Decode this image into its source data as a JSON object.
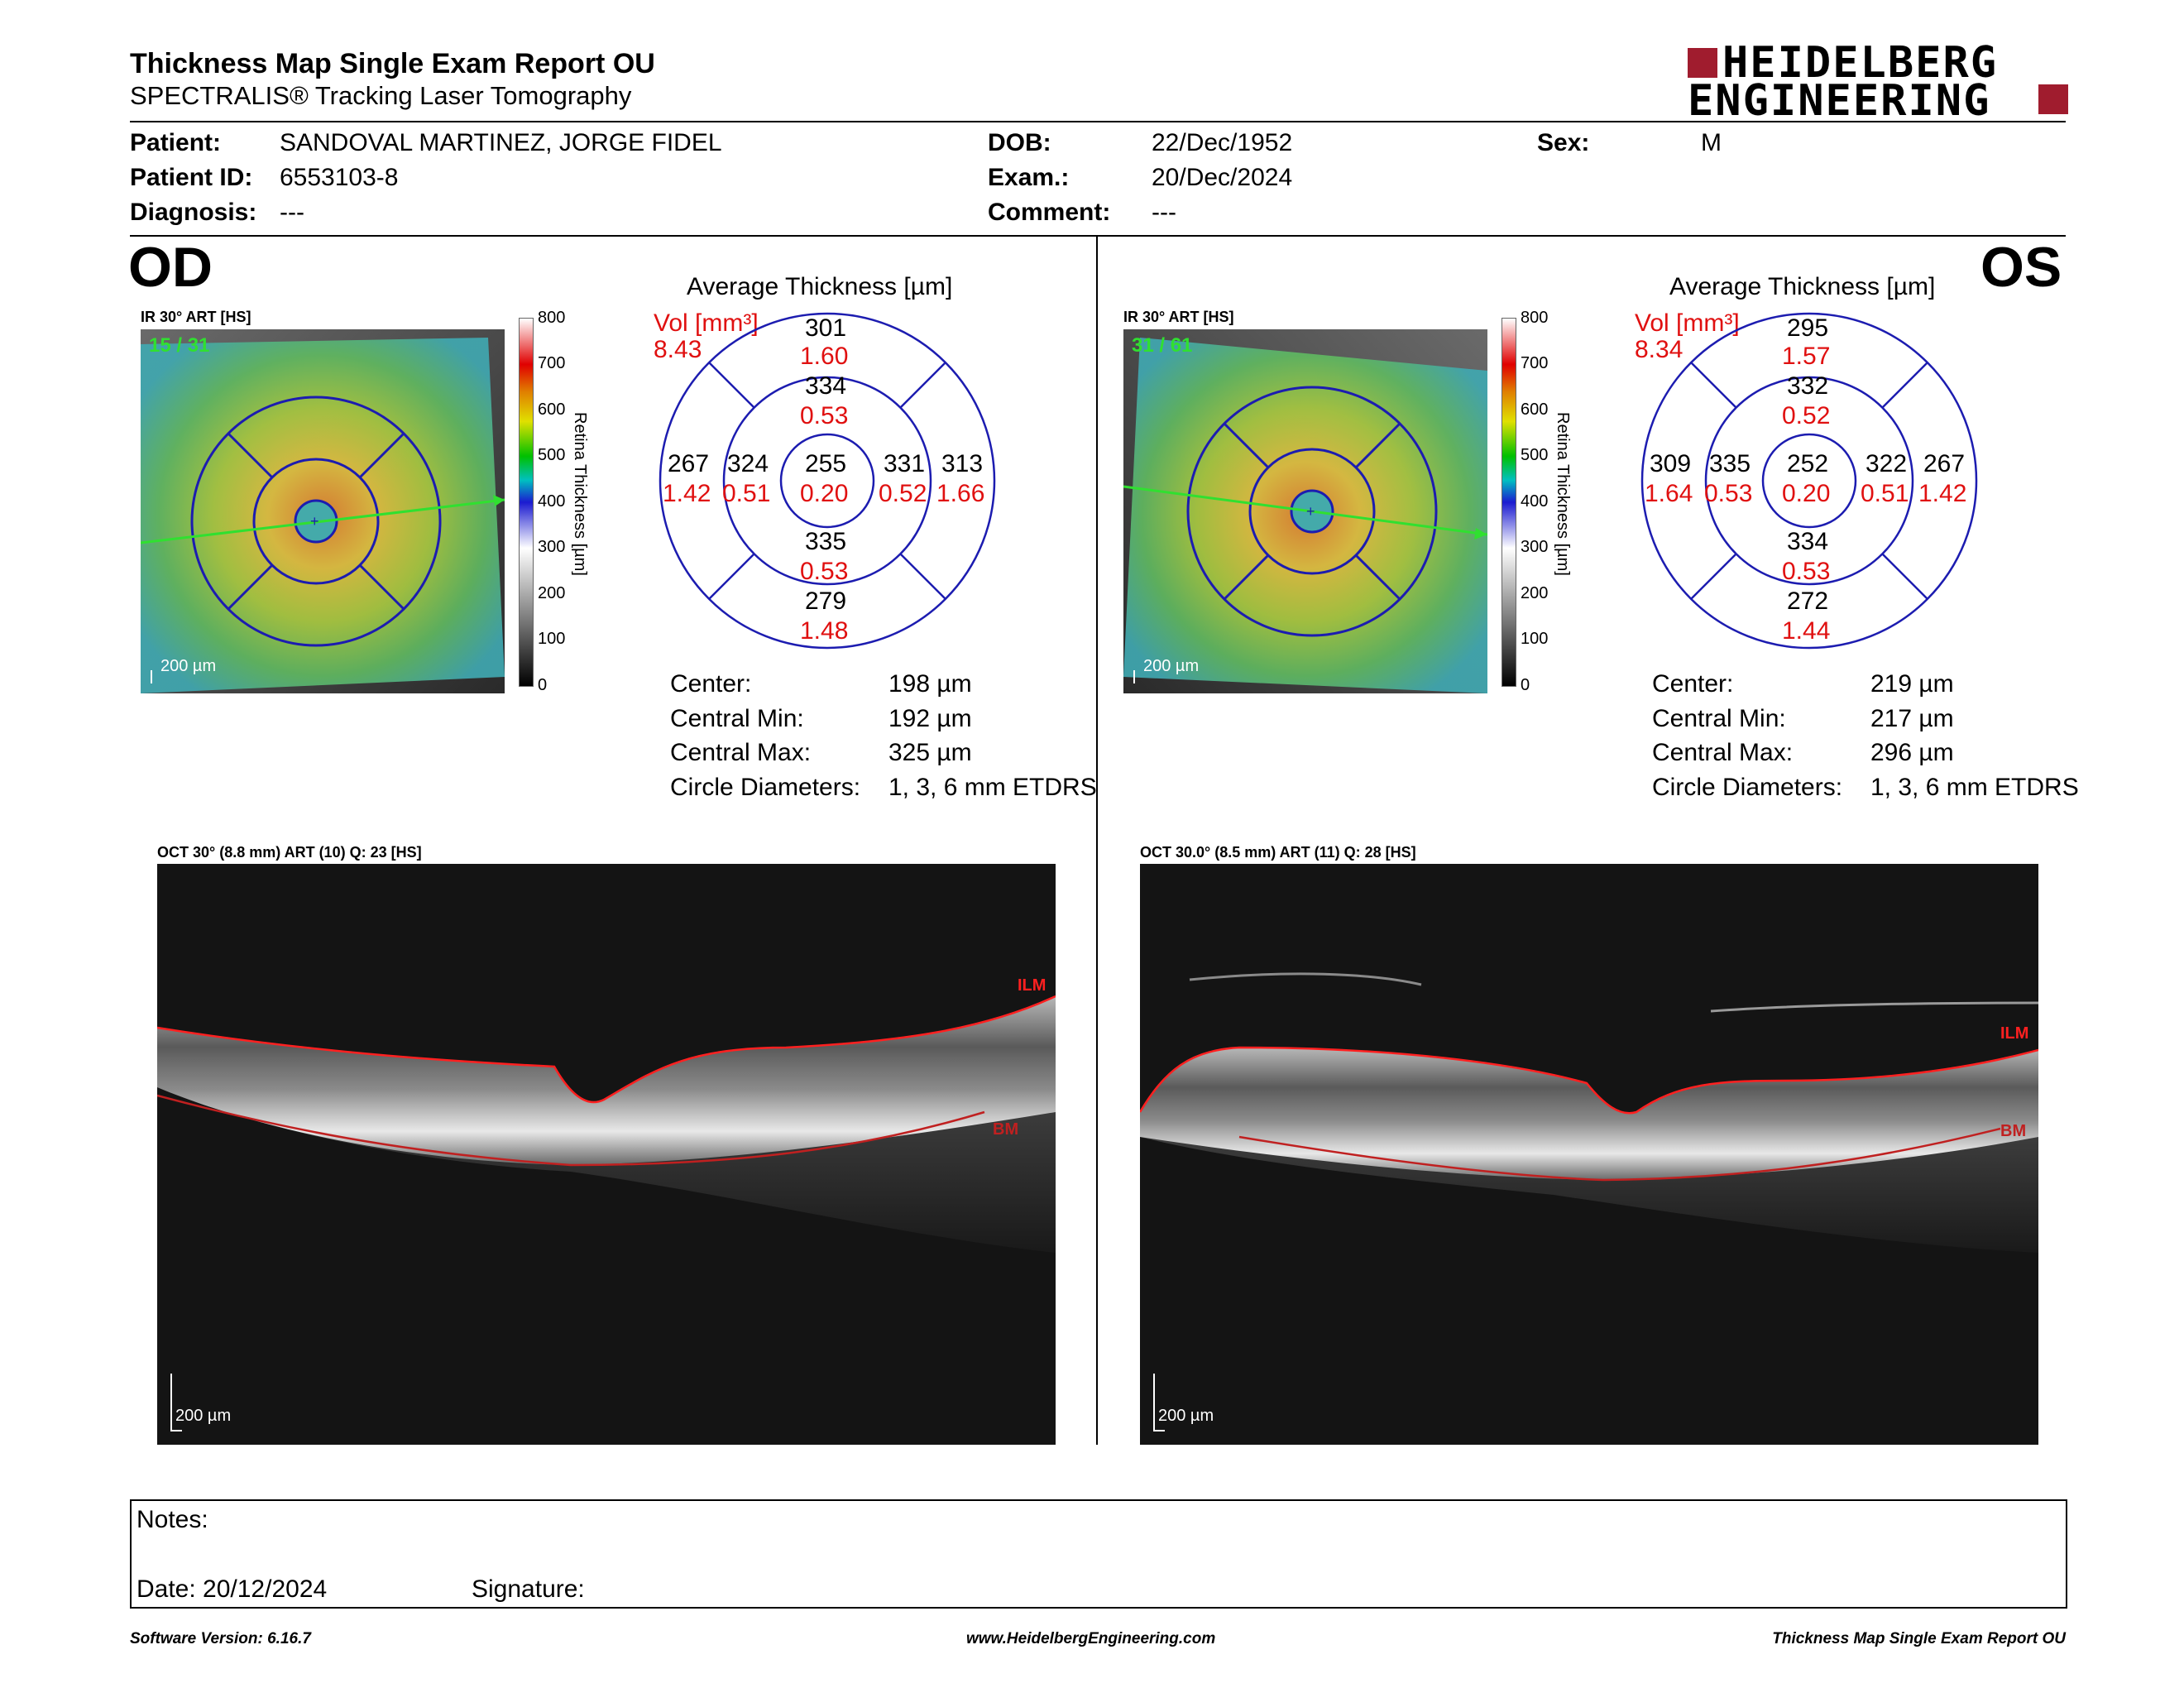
{
  "header": {
    "title": "Thickness Map Single Exam Report OU",
    "subtitle": "SPECTRALIS® Tracking Laser Tomography",
    "logo_line1": "HEIDELBERG",
    "logo_line2": "ENGINEERING"
  },
  "patient": {
    "patient_label": "Patient:",
    "patient_value": "SANDOVAL MARTINEZ, JORGE FIDEL",
    "id_label": "Patient ID:",
    "id_value": "6553103-8",
    "diagnosis_label": "Diagnosis:",
    "diagnosis_value": "---",
    "dob_label": "DOB:",
    "dob_value": "22/Dec/1952",
    "exam_label": "Exam.:",
    "exam_value": "20/Dec/2024",
    "comment_label": "Comment:",
    "comment_value": "---",
    "sex_label": "Sex:",
    "sex_value": "M"
  },
  "colorbar": {
    "ticks": [
      "800",
      "700",
      "600",
      "500",
      "400",
      "300",
      "200",
      "100",
      "0"
    ],
    "label": "Retina Thickness [µm]"
  },
  "od": {
    "eye": "OD",
    "fundus_label": "IR 30° ART [HS]",
    "fundus_count": "15 / 31",
    "fundus_scale": "200 µm",
    "avg_title": "Average Thickness [µm]",
    "vol_label": "Vol [mm³]",
    "vol_value": "8.43",
    "grid": {
      "sup_outer_t": "301",
      "sup_outer_v": "1.60",
      "sup_inner_t": "334",
      "sup_inner_v": "0.53",
      "center_t": "255",
      "center_v": "0.20",
      "temp_outer_t": "267",
      "temp_outer_v": "1.42",
      "temp_inner_t": "324",
      "temp_inner_v": "0.51",
      "nas_inner_t": "331",
      "nas_inner_v": "0.52",
      "nas_outer_t": "313",
      "nas_outer_v": "1.66",
      "inf_inner_t": "335",
      "inf_inner_v": "0.53",
      "inf_outer_t": "279",
      "inf_outer_v": "1.48"
    },
    "stats": {
      "center_label": "Center:",
      "center_value": "198 µm",
      "cmin_label": "Central Min:",
      "cmin_value": "192 µm",
      "cmax_label": "Central Max:",
      "cmax_value": "325 µm",
      "diam_label": "Circle Diameters:",
      "diam_value": "1, 3, 6 mm ETDRS"
    },
    "oct_label": "OCT 30° (8.8 mm) ART (10) Q: 23 [HS]",
    "oct_ilm": "ILM",
    "oct_bm": "BM",
    "oct_scale": "200 µm"
  },
  "os": {
    "eye": "OS",
    "fundus_label": "IR 30° ART [HS]",
    "fundus_count": "31 / 61",
    "fundus_scale": "200 µm",
    "avg_title": "Average Thickness [µm]",
    "vol_label": "Vol [mm³]",
    "vol_value": "8.34",
    "grid": {
      "sup_outer_t": "295",
      "sup_outer_v": "1.57",
      "sup_inner_t": "332",
      "sup_inner_v": "0.52",
      "center_t": "252",
      "center_v": "0.20",
      "temp_outer_t": "309",
      "temp_outer_v": "1.64",
      "temp_inner_t": "335",
      "temp_inner_v": "0.53",
      "nas_inner_t": "322",
      "nas_inner_v": "0.51",
      "nas_outer_t": "267",
      "nas_outer_v": "1.42",
      "inf_inner_t": "334",
      "inf_inner_v": "0.53",
      "inf_outer_t": "272",
      "inf_outer_v": "1.44"
    },
    "stats": {
      "center_label": "Center:",
      "center_value": "219 µm",
      "cmin_label": "Central Min:",
      "cmin_value": "217 µm",
      "cmax_label": "Central Max:",
      "cmax_value": "296 µm",
      "diam_label": "Circle Diameters:",
      "diam_value": "1, 3, 6 mm ETDRS"
    },
    "oct_label": "OCT 30.0° (8.5 mm) ART (11) Q: 28 [HS]",
    "oct_ilm": "ILM",
    "oct_bm": "BM",
    "oct_scale": "200 µm"
  },
  "notes": {
    "notes_label": "Notes:",
    "date_label": "Date: 20/12/2024",
    "signature_label": "Signature:"
  },
  "footer": {
    "software": "Software Version: 6.16.7",
    "website": "www.HeidelbergEngineering.com",
    "report": "Thickness Map Single Exam Report OU"
  },
  "colors": {
    "accent_red": "#e01010",
    "logo_red": "#a01c2e",
    "grid_blue": "#1c1cb0"
  }
}
